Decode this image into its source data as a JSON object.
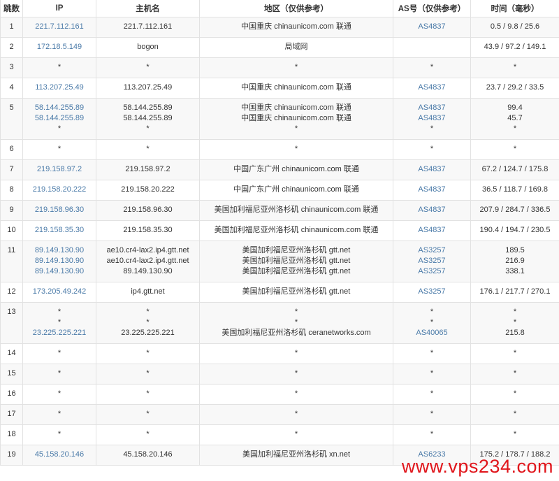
{
  "headers": [
    "跳数",
    "IP",
    "主机名",
    "地区（仅供参考）",
    "AS号（仅供参考）",
    "时间（毫秒）"
  ],
  "colors": {
    "link": "#4a7aa8",
    "watermark": "#e0151b",
    "stripe": "#f8f8f8"
  },
  "watermark": "www.vps234.com",
  "rows": [
    {
      "hop": "1",
      "lines": [
        {
          "ip": "221.7.112.161",
          "host": "221.7.112.161",
          "region": "中国重庆 chinaunicom.com 联通",
          "as": "AS4837",
          "time": "0.5 / 9.8 / 25.6"
        }
      ]
    },
    {
      "hop": "2",
      "lines": [
        {
          "ip": "172.18.5.149",
          "host": "bogon",
          "region": "局域网",
          "as": "",
          "time": "43.9 / 97.2 / 149.1"
        }
      ]
    },
    {
      "hop": "3",
      "lines": [
        {
          "ip": "*",
          "host": "*",
          "region": "*",
          "as": "*",
          "time": "*"
        }
      ]
    },
    {
      "hop": "4",
      "lines": [
        {
          "ip": "113.207.25.49",
          "host": "113.207.25.49",
          "region": "中国重庆 chinaunicom.com 联通",
          "as": "AS4837",
          "time": "23.7 / 29.2 / 33.5"
        }
      ]
    },
    {
      "hop": "5",
      "lines": [
        {
          "ip": "58.144.255.89",
          "host": "58.144.255.89",
          "region": "中国重庆 chinaunicom.com 联通",
          "as": "AS4837",
          "time": "99.4"
        },
        {
          "ip": "58.144.255.89",
          "host": "58.144.255.89",
          "region": "中国重庆 chinaunicom.com 联通",
          "as": "AS4837",
          "time": "45.7"
        },
        {
          "ip": "*",
          "host": "*",
          "region": "*",
          "as": "*",
          "time": "*"
        }
      ]
    },
    {
      "hop": "6",
      "lines": [
        {
          "ip": "*",
          "host": "*",
          "region": "*",
          "as": "*",
          "time": "*"
        }
      ]
    },
    {
      "hop": "7",
      "lines": [
        {
          "ip": "219.158.97.2",
          "host": "219.158.97.2",
          "region": "中国广东广州 chinaunicom.com 联通",
          "as": "AS4837",
          "time": "67.2 / 124.7 / 175.8"
        }
      ]
    },
    {
      "hop": "8",
      "lines": [
        {
          "ip": "219.158.20.222",
          "host": "219.158.20.222",
          "region": "中国广东广州 chinaunicom.com 联通",
          "as": "AS4837",
          "time": "36.5 / 118.7 / 169.8"
        }
      ]
    },
    {
      "hop": "9",
      "lines": [
        {
          "ip": "219.158.96.30",
          "host": "219.158.96.30",
          "region": "美国加利福尼亚州洛杉矶 chinaunicom.com 联通",
          "as": "AS4837",
          "time": "207.9 / 284.7 / 336.5"
        }
      ]
    },
    {
      "hop": "10",
      "lines": [
        {
          "ip": "219.158.35.30",
          "host": "219.158.35.30",
          "region": "美国加利福尼亚州洛杉矶 chinaunicom.com 联通",
          "as": "AS4837",
          "time": "190.4 / 194.7 / 230.5"
        }
      ]
    },
    {
      "hop": "11",
      "lines": [
        {
          "ip": "89.149.130.90",
          "host": "ae10.cr4-lax2.ip4.gtt.net",
          "region": "美国加利福尼亚州洛杉矶 gtt.net",
          "as": "AS3257",
          "time": "189.5"
        },
        {
          "ip": "89.149.130.90",
          "host": "ae10.cr4-lax2.ip4.gtt.net",
          "region": "美国加利福尼亚州洛杉矶 gtt.net",
          "as": "AS3257",
          "time": "216.9"
        },
        {
          "ip": "89.149.130.90",
          "host": "89.149.130.90",
          "region": "美国加利福尼亚州洛杉矶 gtt.net",
          "as": "AS3257",
          "time": "338.1"
        }
      ]
    },
    {
      "hop": "12",
      "lines": [
        {
          "ip": "173.205.49.242",
          "host": "ip4.gtt.net",
          "region": "美国加利福尼亚州洛杉矶 gtt.net",
          "as": "AS3257",
          "time": "176.1 / 217.7 / 270.1"
        }
      ]
    },
    {
      "hop": "13",
      "lines": [
        {
          "ip": "*",
          "host": "*",
          "region": "*",
          "as": "*",
          "time": "*"
        },
        {
          "ip": "*",
          "host": "*",
          "region": "*",
          "as": "*",
          "time": "*"
        },
        {
          "ip": "23.225.225.221",
          "host": "23.225.225.221",
          "region": "美国加利福尼亚州洛杉矶 ceranetworks.com",
          "as": "AS40065",
          "time": "215.8"
        }
      ]
    },
    {
      "hop": "14",
      "lines": [
        {
          "ip": "*",
          "host": "*",
          "region": "*",
          "as": "*",
          "time": "*"
        }
      ]
    },
    {
      "hop": "15",
      "lines": [
        {
          "ip": "*",
          "host": "*",
          "region": "*",
          "as": "*",
          "time": "*"
        }
      ]
    },
    {
      "hop": "16",
      "lines": [
        {
          "ip": "*",
          "host": "*",
          "region": "*",
          "as": "*",
          "time": "*"
        }
      ]
    },
    {
      "hop": "17",
      "lines": [
        {
          "ip": "*",
          "host": "*",
          "region": "*",
          "as": "*",
          "time": "*"
        }
      ]
    },
    {
      "hop": "18",
      "lines": [
        {
          "ip": "*",
          "host": "*",
          "region": "*",
          "as": "*",
          "time": "*"
        }
      ]
    },
    {
      "hop": "19",
      "lines": [
        {
          "ip": "45.158.20.146",
          "host": "45.158.20.146",
          "region": "美国加利福尼亚州洛杉矶 xn.net",
          "as": "AS6233",
          "time": "175.2 / 178.7 / 188.2"
        }
      ]
    }
  ]
}
